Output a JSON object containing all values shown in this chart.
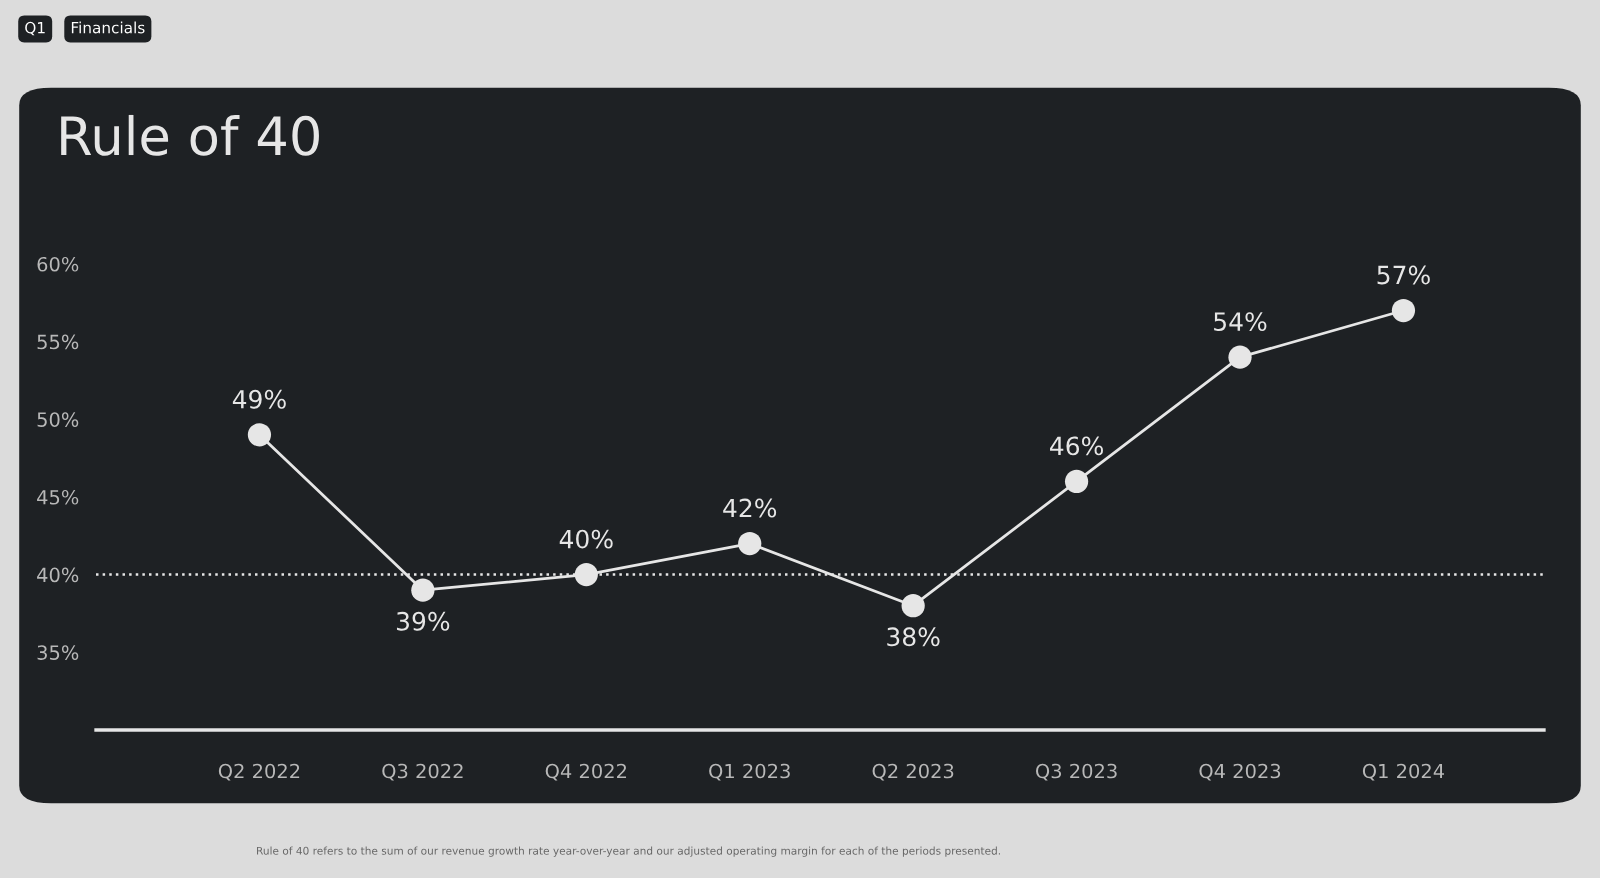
{
  "chart_data": {
    "type": "line",
    "title": "Rule of 40",
    "categories": [
      "Q2 2022",
      "Q3 2022",
      "Q4 2022",
      "Q1 2023",
      "Q2 2023",
      "Q3 2023",
      "Q4 2023",
      "Q1 2024"
    ],
    "series": [
      {
        "color": "#e6e6e6",
        "values": [
          49,
          39,
          40,
          42,
          38,
          46,
          54,
          57
        ],
        "value_labels": [
          "49%",
          "39%",
          "40%",
          "42%",
          "38%",
          "46%",
          "54%",
          "57%"
        ]
      }
    ],
    "marker": "circle",
    "line_style": "solid",
    "grid": false,
    "legend": false,
    "ylim": [
      30,
      60
    ],
    "yticks": [
      {
        "value": 35,
        "label": "35%"
      },
      {
        "value": 40,
        "label": "40%"
      },
      {
        "value": 45,
        "label": "45%"
      },
      {
        "value": 50,
        "label": "50%"
      },
      {
        "value": 55,
        "label": "55%"
      },
      {
        "value": 60,
        "label": "60%"
      }
    ],
    "ref_lines": [
      {
        "axis": "y",
        "value": 40,
        "label": null,
        "color": "#e6e6e6",
        "line_style": "dotted"
      }
    ],
    "annotations": [
      "Q1",
      "Financials",
      "Rule of 40 refers to the sum of our revenue growth rate year-over-year and our adjusted operating margin for each of the periods presented."
    ]
  }
}
